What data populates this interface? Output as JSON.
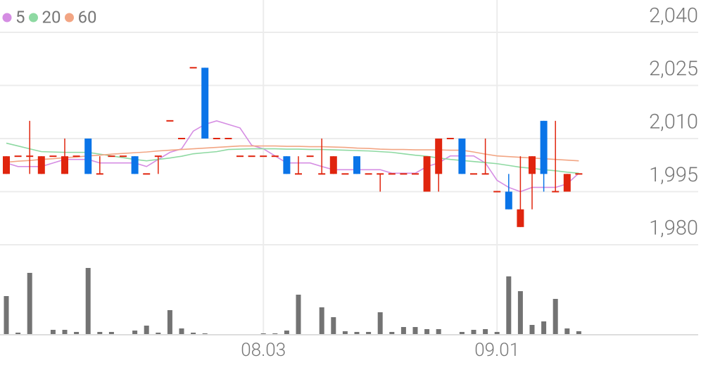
{
  "chart_data": [
    {
      "type": "candlestick",
      "categories": [
        null,
        null,
        null,
        null,
        null,
        null,
        null,
        null,
        null,
        null,
        null,
        null,
        null,
        null,
        null,
        null,
        null,
        null,
        null,
        null,
        null,
        null,
        "08.03",
        null,
        null,
        null,
        null,
        null,
        null,
        null,
        null,
        null,
        null,
        null,
        null,
        null,
        null,
        null,
        null,
        null,
        null,
        null,
        "09.01",
        null,
        null,
        null,
        null,
        null,
        null,
        null
      ],
      "open": [
        2000,
        2005,
        2005,
        2000,
        2005,
        2000,
        2005,
        2010,
        2000,
        2005,
        2005,
        2005,
        2000,
        2005,
        2015,
        2010,
        2030,
        2030,
        2010,
        2010,
        2005,
        2005,
        2005,
        2005,
        2005,
        2000,
        2005,
        2000,
        2000,
        2000,
        2005,
        2000,
        2000,
        2000,
        2000,
        2000,
        1995,
        2000,
        2010,
        2010,
        2000,
        2000,
        1995,
        1995,
        1985,
        2000,
        2015,
        1995,
        1995,
        2000
      ],
      "high": [
        2005,
        2005,
        2015,
        2005,
        2005,
        2010,
        2005,
        2010,
        2005,
        2005,
        2005,
        2005,
        2000,
        2005,
        2015,
        2010,
        2030,
        2030,
        2010,
        2010,
        2005,
        2005,
        2005,
        2005,
        2005,
        2005,
        2005,
        2010,
        2005,
        2000,
        2005,
        2000,
        2000,
        2000,
        2000,
        2000,
        2005,
        2010,
        2010,
        2010,
        2000,
        2010,
        1995,
        2000,
        2005,
        2005,
        2015,
        2015,
        2000,
        2000
      ],
      "low": [
        2000,
        2005,
        2000,
        2000,
        2005,
        2000,
        2005,
        2000,
        2000,
        2005,
        2005,
        2000,
        2000,
        2000,
        2015,
        2010,
        2030,
        2010,
        2010,
        2010,
        2005,
        2005,
        2005,
        2005,
        2000,
        2000,
        2005,
        2000,
        2000,
        2000,
        2000,
        2000,
        1995,
        2000,
        2000,
        2000,
        1995,
        1995,
        2010,
        2000,
        2000,
        2000,
        1995,
        1990,
        1985,
        1990,
        1995,
        1995,
        1995,
        2000
      ],
      "close": [
        2005,
        2005,
        2005,
        2005,
        2005,
        2005,
        2005,
        2000,
        2000,
        2005,
        2005,
        2000,
        2000,
        2005,
        2015,
        2010,
        2030,
        2010,
        2010,
        2010,
        2005,
        2005,
        2005,
        2005,
        2000,
        2000,
        2005,
        2000,
        2005,
        2000,
        2000,
        2000,
        2000,
        2000,
        2000,
        2000,
        2005,
        2010,
        2010,
        2000,
        2000,
        2000,
        1995,
        1990,
        1990,
        2005,
        2000,
        1995,
        2000,
        2000
      ],
      "up_color": "#e0250e",
      "down_color": "#0a74e8",
      "series": [
        {
          "name": "5",
          "color": "#d58de3",
          "values": [
            2003.1,
            2002.1,
            2002.1,
            2002.1,
            2003.1,
            2004.1,
            2004.1,
            2004.1,
            2003.1,
            2003.1,
            2003.1,
            2003.1,
            2002.1,
            2004.1,
            2006.1,
            2007.1,
            2012.1,
            2014,
            2015,
            2014,
            2013,
            2008.1,
            2007.1,
            2005.1,
            2003.1,
            2003.1,
            2003.1,
            2002.1,
            2001.2,
            2001.2,
            2001.2,
            2001.2,
            2001.2,
            2000.2,
            2000.2,
            2000.2,
            2002.1,
            2003.1,
            2005.1,
            2005.1,
            2005.1,
            2003.1,
            1998.2,
            1996.2,
            1995,
            1996.2,
            1996.2,
            1996.2,
            1997.2,
            2000.2
          ]
        },
        {
          "name": "20",
          "color": "#8ed9a2",
          "values": [
            2008.7,
            2007.9,
            2007.1,
            2006.3,
            2006.2,
            2006.1,
            2006.1,
            2006.1,
            2005.6,
            2005.1,
            2004.6,
            2004.1,
            2003.7,
            2004.1,
            2004.5,
            2005,
            2005.7,
            2006,
            2006.3,
            2006.9,
            2007,
            2007.1,
            2007.1,
            2007.1,
            2007,
            2007,
            2006.9,
            2006.9,
            2006.8,
            2006.7,
            2006.6,
            2006.5,
            2006.3,
            2006.1,
            2005.7,
            2005.3,
            2005,
            2004.5,
            2004.1,
            2003.8,
            2003.5,
            2003.2,
            2002.9,
            2002.4,
            2001.9,
            2001.6,
            2001.2,
            2000.9,
            2000.5,
            2000.2
          ]
        },
        {
          "name": "60",
          "color": "#f2a583",
          "values": [
            2003.3,
            2003.6,
            2003.8,
            2004.1,
            2004.3,
            2004.6,
            2004.8,
            2005.1,
            2005.3,
            2005.6,
            2005.8,
            2006,
            2006.2,
            2006.5,
            2006.7,
            2006.9,
            2007.1,
            2007.3,
            2007.5,
            2007.7,
            2007.9,
            2007.9,
            2007.9,
            2007.9,
            2007.8,
            2007.8,
            2007.7,
            2007.7,
            2007.6,
            2007.5,
            2007.3,
            2007.2,
            2007,
            2006.9,
            2006.9,
            2006.8,
            2006.8,
            2006.8,
            2006.7,
            2006.7,
            2006.2,
            2005.6,
            2005.1,
            2004.9,
            2004.7,
            2004.5,
            2004.3,
            2004.1,
            2003.9,
            2003.7
          ]
        }
      ],
      "ylim": [
        1980,
        2040
      ],
      "yticks": [
        {
          "value": 2040,
          "label": "2,040"
        },
        {
          "value": 2025,
          "label": "2,025"
        },
        {
          "value": 2010,
          "label": "2,010"
        },
        {
          "value": 1995,
          "label": "1,995"
        },
        {
          "value": 1980,
          "label": "1,980"
        }
      ],
      "grid": true,
      "legend": "top-left"
    },
    {
      "type": "bar",
      "color": "#737373",
      "ylim": [
        0,
        127
      ],
      "values": [
        54,
        2,
        87,
        0,
        6,
        6,
        3,
        94,
        3,
        3,
        0,
        5,
        12,
        2,
        34,
        8,
        2,
        1,
        0,
        0,
        0,
        0,
        1,
        1,
        5,
        56,
        0,
        38,
        24,
        4,
        3,
        3,
        31,
        3,
        10,
        10,
        7,
        7,
        0,
        3,
        6,
        7,
        3,
        82,
        61,
        13,
        18,
        50,
        8,
        4
      ]
    }
  ]
}
